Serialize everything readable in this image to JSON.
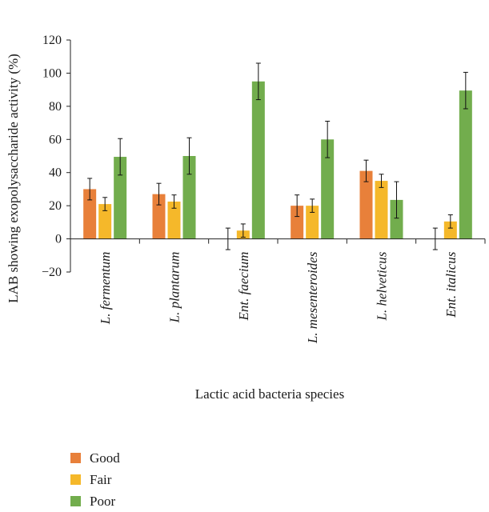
{
  "chart_data": {
    "type": "bar",
    "title": "",
    "xlabel": "Lactic acid bacteria species",
    "ylabel": "LAB showing exopolysaccharide activity (%)",
    "ylim": [
      -20,
      120
    ],
    "yticks": [
      -20,
      0,
      20,
      40,
      60,
      80,
      100,
      120
    ],
    "ytick_labels": [
      "−20",
      "0",
      "20",
      "40",
      "60",
      "80",
      "100",
      "120"
    ],
    "categories": [
      "L. fermentum",
      "L. plantarum",
      "Ent. faecium",
      "L. mesenteroides",
      "L. helveticus",
      "Ent. italicus"
    ],
    "series": [
      {
        "name": "Good",
        "color": "#e8803a",
        "values": [
          30,
          27,
          0,
          20,
          41,
          0
        ],
        "errors": [
          6.5,
          6.5,
          6.5,
          6.5,
          6.5,
          6.5
        ]
      },
      {
        "name": "Fair",
        "color": "#f5b82a",
        "values": [
          21,
          22.5,
          5,
          20,
          35,
          10.5
        ],
        "errors": [
          4,
          4,
          4,
          4,
          4,
          4
        ]
      },
      {
        "name": "Poor",
        "color": "#72ad4d",
        "values": [
          49.5,
          50,
          95,
          60,
          23.5,
          89.5
        ],
        "errors": [
          11,
          11,
          11,
          11,
          11,
          11
        ]
      }
    ],
    "grid": false,
    "legend_position": "bottom-left"
  }
}
